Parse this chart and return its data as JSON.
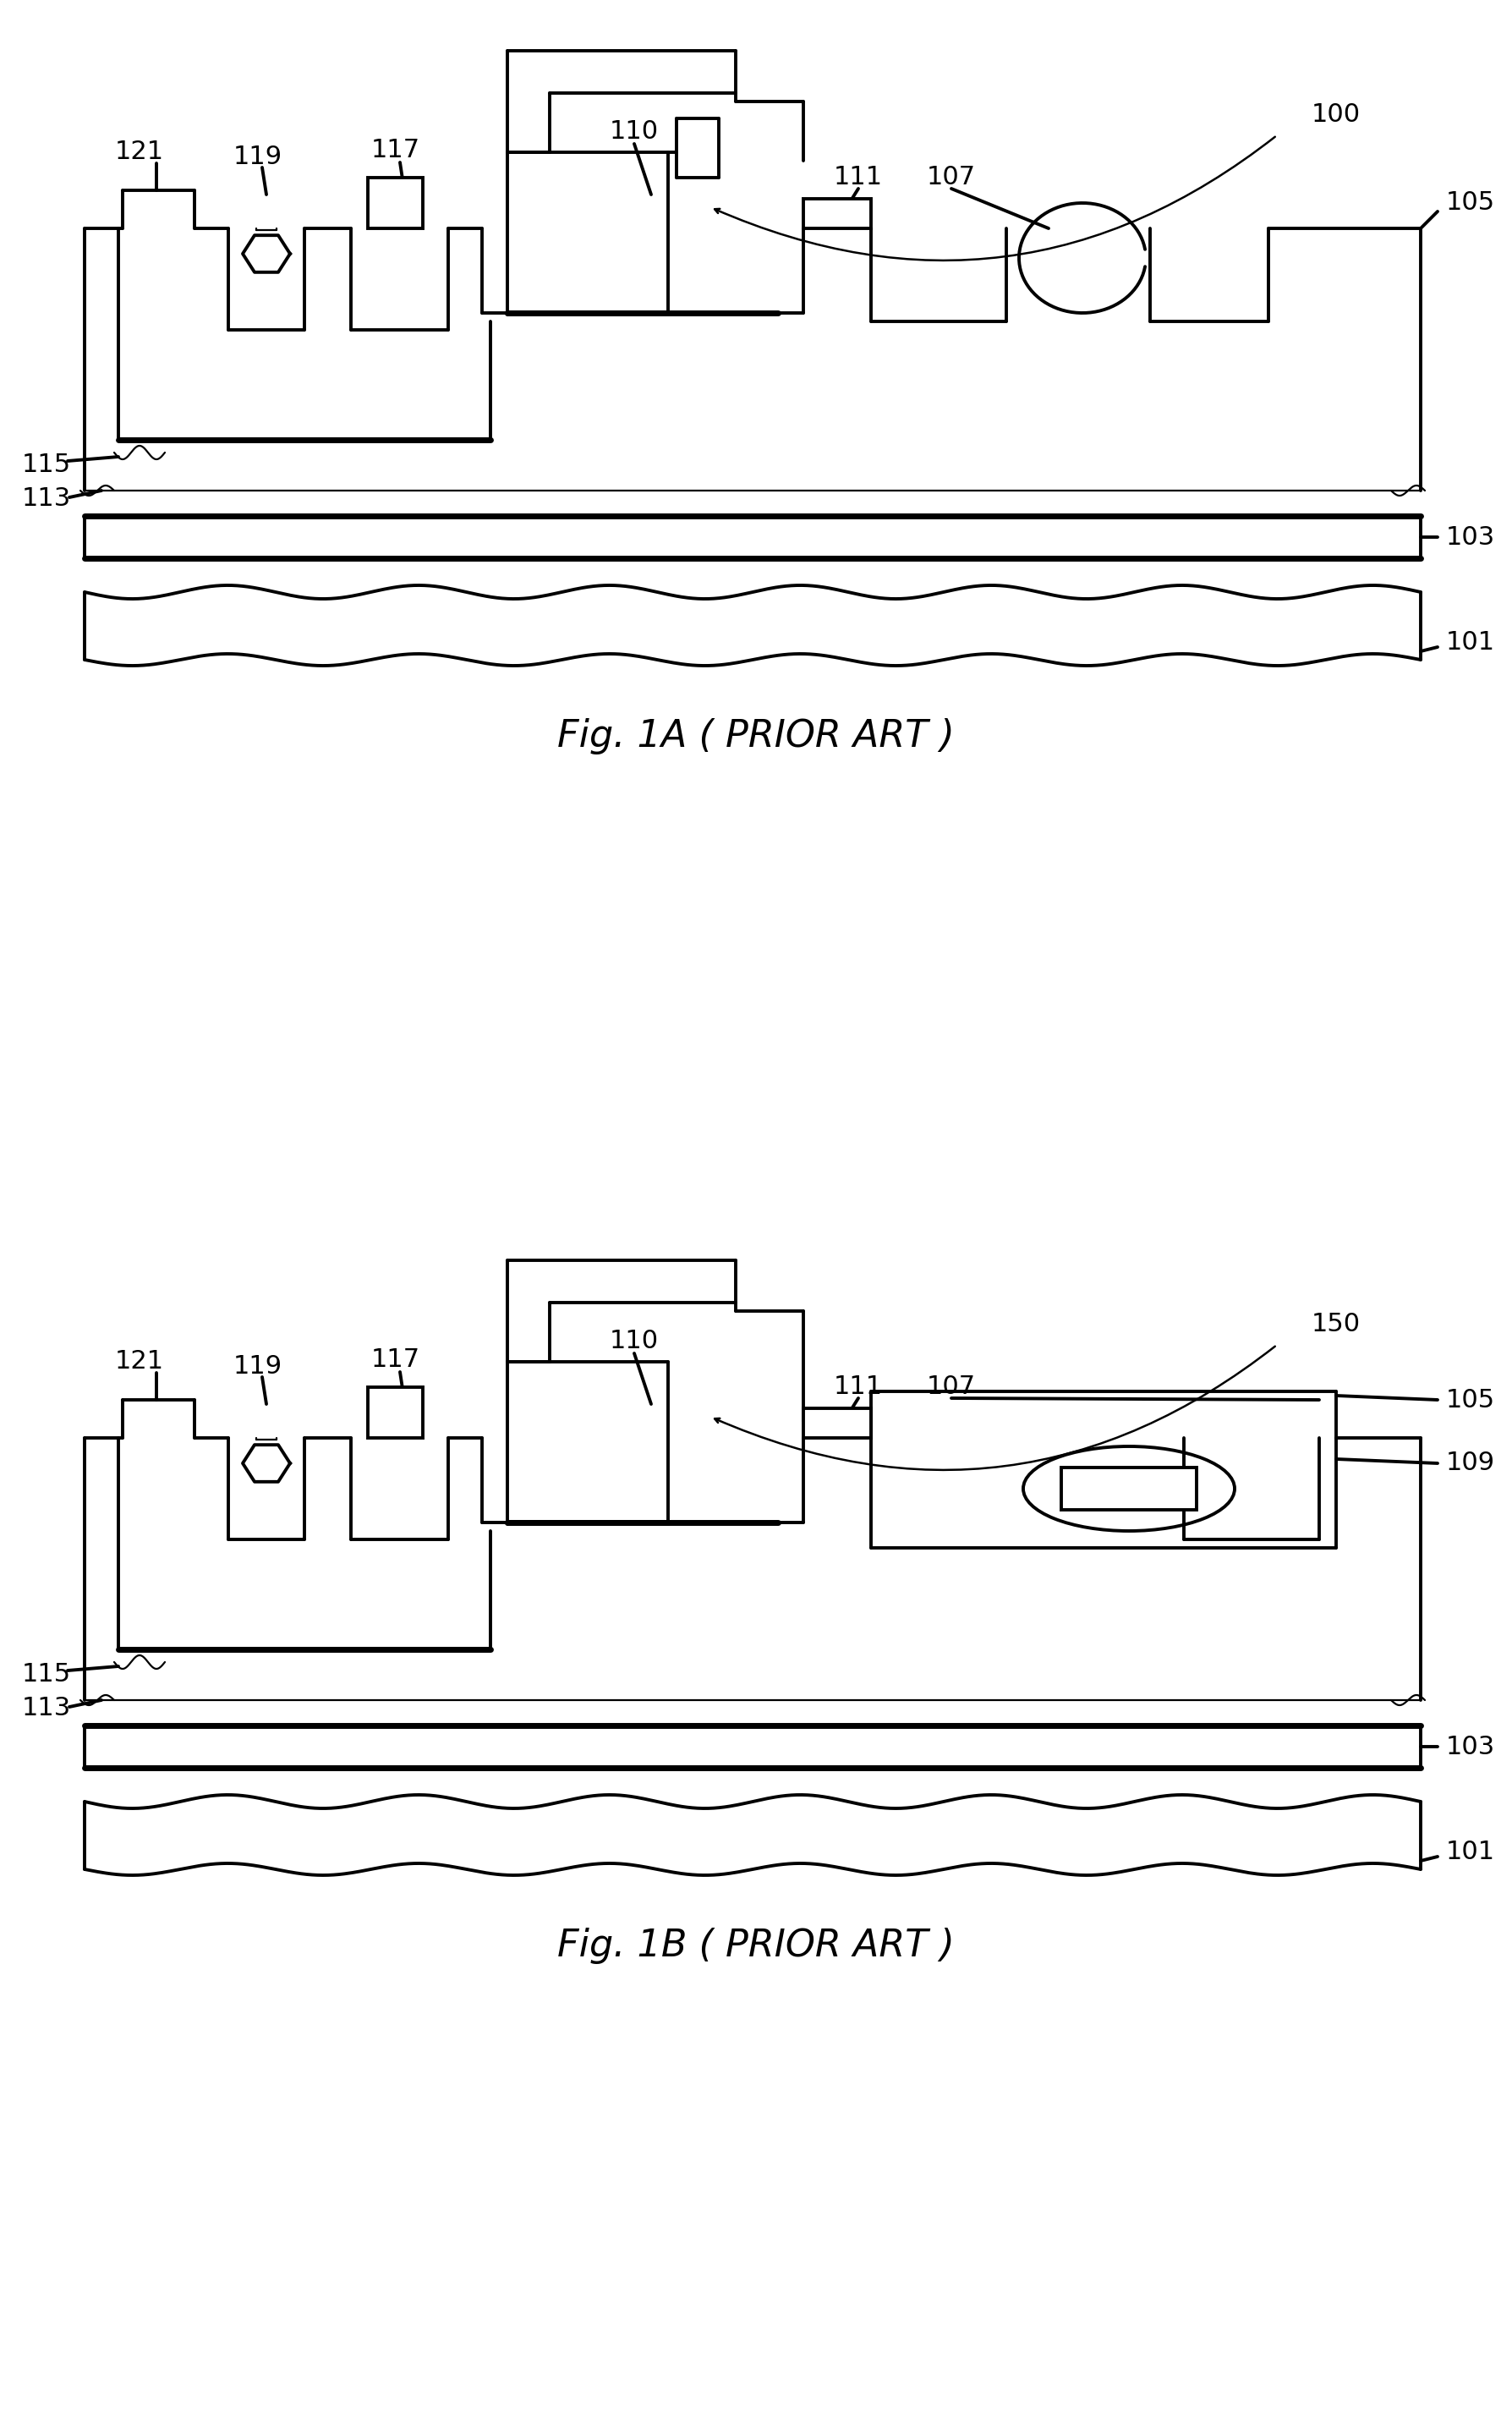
{
  "fig_width": 17.88,
  "fig_height": 28.54,
  "bg": "#ffffff",
  "lc": "#000000",
  "lw": 2.8,
  "lw_thick": 5.0,
  "lw_thin": 1.6,
  "fs_label": 22,
  "fs_title": 32,
  "title_1a": "Fig. 1A ( PRIOR ART )",
  "title_1b": "Fig. 1B ( PRIOR ART )"
}
